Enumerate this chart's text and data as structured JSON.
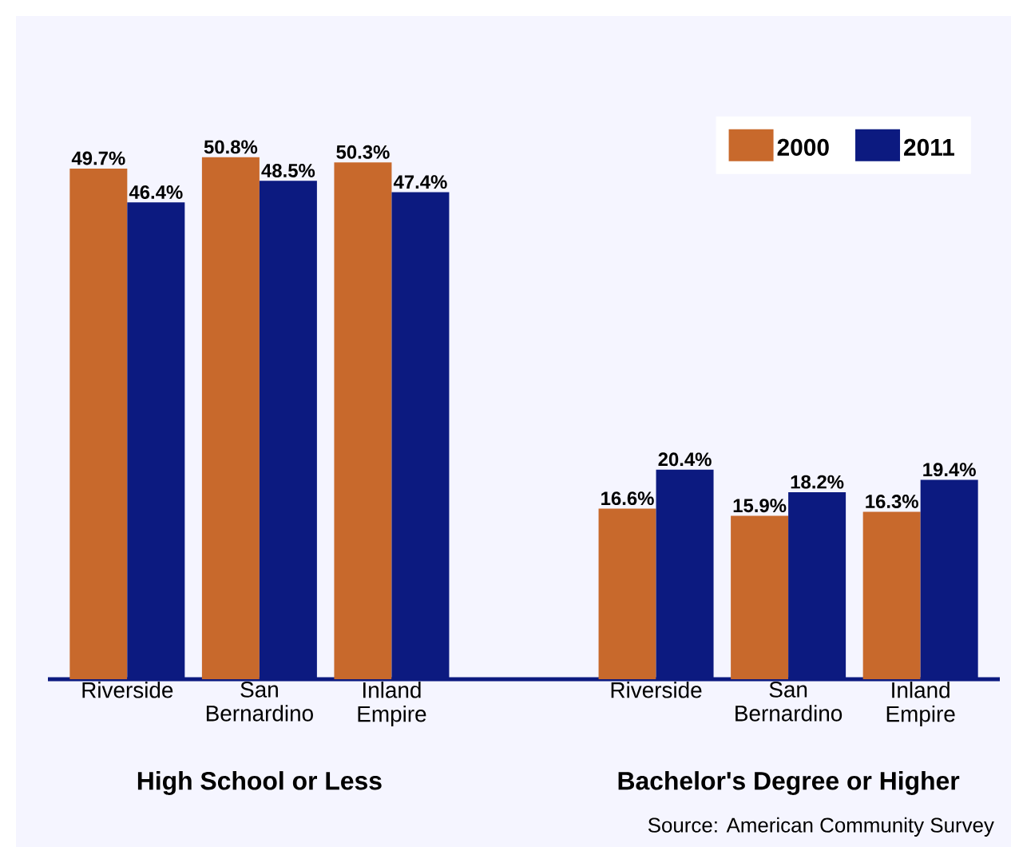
{
  "chart_data": {
    "type": "bar",
    "categories": [
      "Riverside",
      "San Bernardino",
      "Inland Empire",
      null,
      "Riverside",
      "San Bernardino",
      "Inland Empire"
    ],
    "series": [
      {
        "name": "2000",
        "color": "#c8692c",
        "values": [
          49.7,
          50.8,
          50.3,
          null,
          16.6,
          15.9,
          16.3
        ],
        "value_labels": [
          "49.7%",
          "50.8%",
          "50.3%",
          null,
          "16.6%",
          "15.9%",
          "16.3%"
        ]
      },
      {
        "name": "2011",
        "color": "#0c1a80",
        "values": [
          46.4,
          48.5,
          47.4,
          null,
          20.4,
          18.2,
          19.4
        ],
        "value_labels": [
          "46.4%",
          "48.5%",
          "47.4%",
          null,
          "20.4%",
          "18.2%",
          "19.4%"
        ]
      }
    ],
    "legend": "top right",
    "annotations": [
      "High School or Less",
      "Bachelor's Degree or Higher",
      "Source:  American Community Survey"
    ]
  }
}
